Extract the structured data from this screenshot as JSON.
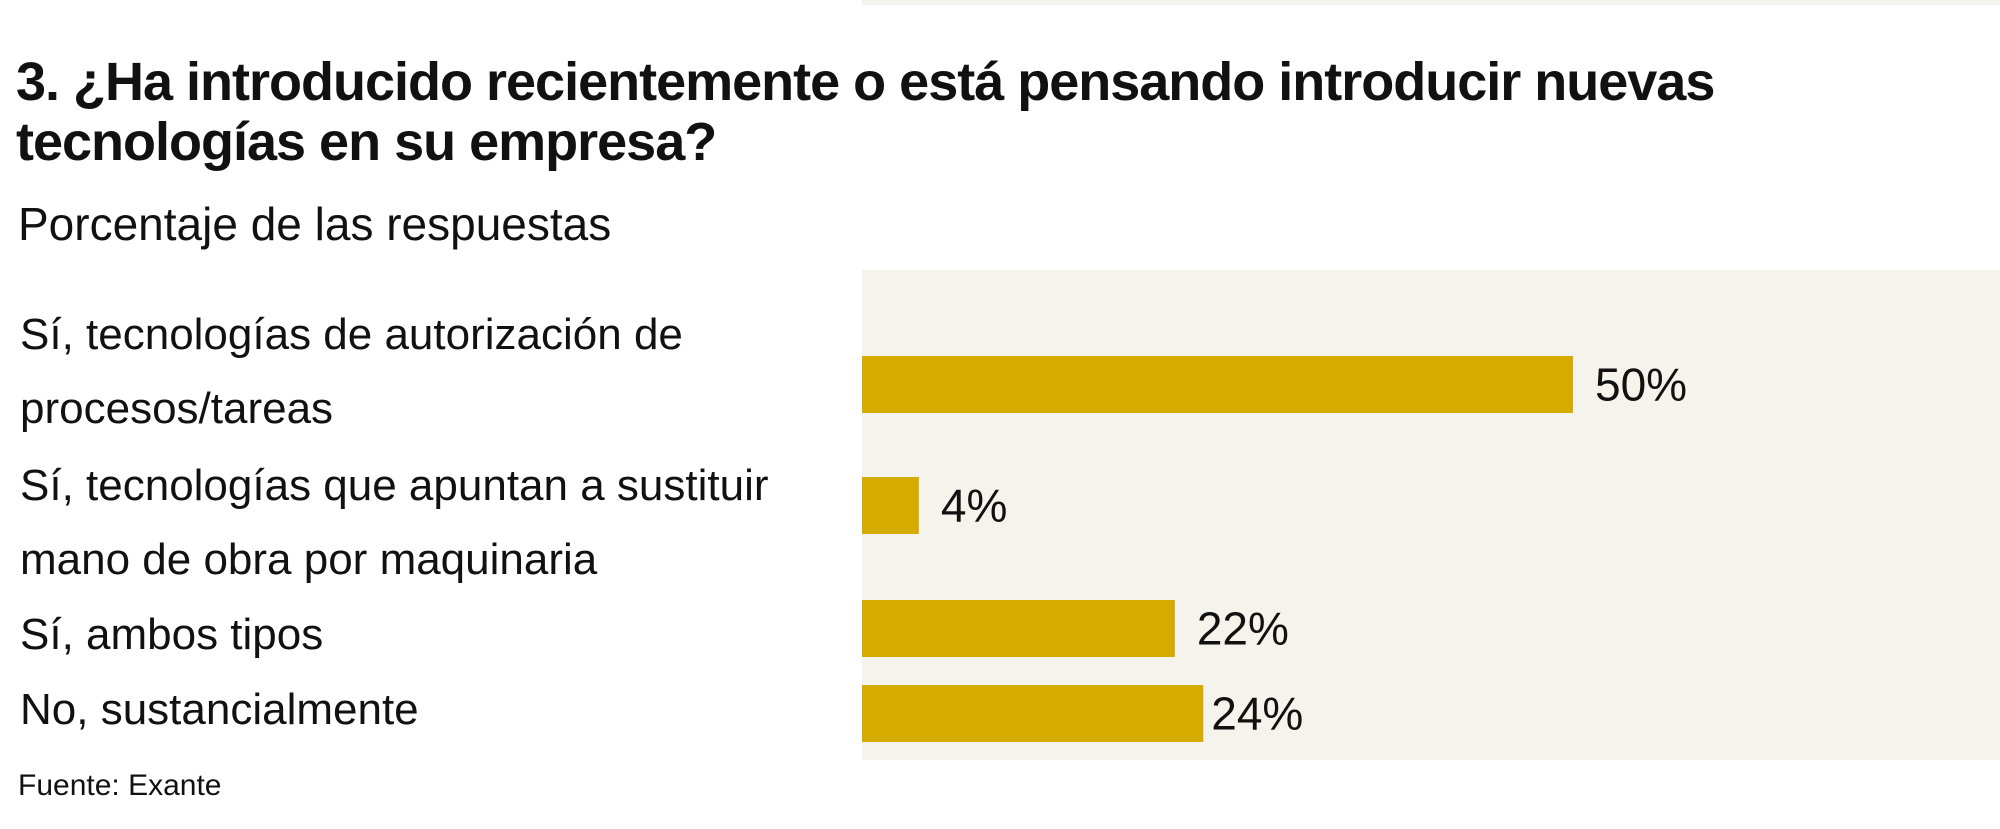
{
  "chart_data": {
    "type": "bar",
    "orientation": "horizontal",
    "title": "3. ¿Ha introducido recientemente o está pensando introducir nuevas tecnologías en su empresa?",
    "subtitle": "Porcentaje de las respuestas",
    "categories": [
      "Sí, tecnologías de autorización de procesos/tareas",
      "Sí, tecnologías que apuntan a sustituir mano de obra por maquinaria",
      "Sí, ambos tipos",
      "No, sustancialmente"
    ],
    "values": [
      50,
      4,
      22,
      24
    ],
    "value_labels": [
      "50%",
      "4%",
      "22%",
      "24%"
    ],
    "xlim": [
      0,
      80
    ],
    "grid": false,
    "source": "Fuente: Exante",
    "colors": {
      "bar": "#d6ab00",
      "plot_background": "#f5f4ec",
      "text": "#111111"
    }
  }
}
